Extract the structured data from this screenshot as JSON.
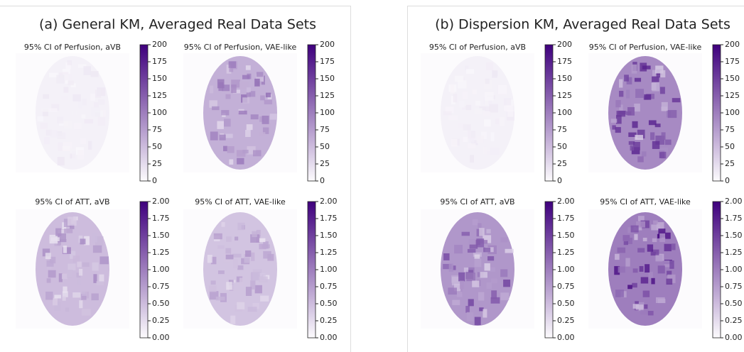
{
  "cmap": [
    "#fcfbfd",
    "#3f007d"
  ],
  "panels": [
    {
      "title": "(a) General KM, Averaged Real Data Sets",
      "plots": [
        {
          "title": "95% CI of Perfusion, aVB",
          "colorbar": {
            "lim": [
              0,
              200
            ],
            "ticks": [
              0,
              25,
              50,
              75,
              100,
              125,
              150,
              175,
              200
            ]
          }
        },
        {
          "title": "95% CI of Perfusion, VAE-like",
          "colorbar": {
            "lim": [
              0,
              200
            ],
            "ticks": [
              0,
              25,
              50,
              75,
              100,
              125,
              150,
              175,
              200
            ]
          }
        },
        {
          "title": "95% CI of ATT, aVB",
          "colorbar": {
            "lim": [
              0,
              2
            ],
            "ticks": [
              {
                "value": 0,
                "label": "0.00"
              },
              {
                "value": 0.25,
                "label": "0.25"
              },
              {
                "value": 0.5,
                "label": "0.50"
              },
              {
                "value": 0.75,
                "label": "0.75"
              },
              {
                "value": 1,
                "label": "1.00"
              },
              {
                "value": 1.25,
                "label": "1.25"
              },
              {
                "value": 1.5,
                "label": "1.50"
              },
              {
                "value": 1.75,
                "label": "1.75"
              },
              {
                "value": 2,
                "label": "2.00"
              }
            ]
          }
        },
        {
          "title": "95% CI of ATT, VAE-like",
          "colorbar": {
            "lim": [
              0,
              2
            ],
            "ticks": [
              {
                "value": 0,
                "label": "0.00"
              },
              {
                "value": 0.25,
                "label": "0.25"
              },
              {
                "value": 0.5,
                "label": "0.50"
              },
              {
                "value": 0.75,
                "label": "0.75"
              },
              {
                "value": 1,
                "label": "1.00"
              },
              {
                "value": 1.25,
                "label": "1.25"
              },
              {
                "value": 1.5,
                "label": "1.50"
              },
              {
                "value": 1.75,
                "label": "1.75"
              },
              {
                "value": 2,
                "label": "2.00"
              }
            ]
          }
        }
      ]
    },
    {
      "title": "(b) Dispersion KM, Averaged Real Data Sets",
      "plots": [
        {
          "title": "95% CI of Perfusion, aVB",
          "colorbar": {
            "lim": [
              0,
              200
            ],
            "ticks": [
              0,
              25,
              50,
              75,
              100,
              125,
              150,
              175,
              200
            ]
          }
        },
        {
          "title": "95% CI of Perfusion, VAE-like",
          "colorbar": {
            "lim": [
              0,
              200
            ],
            "ticks": [
              0,
              25,
              50,
              75,
              100,
              125,
              150,
              175,
              200
            ]
          }
        },
        {
          "title": "95% CI of ATT, aVB",
          "colorbar": {
            "lim": [
              0,
              2
            ],
            "ticks": [
              {
                "value": 0,
                "label": "0.00"
              },
              {
                "value": 0.25,
                "label": "0.25"
              },
              {
                "value": 0.5,
                "label": "0.50"
              },
              {
                "value": 0.75,
                "label": "0.75"
              },
              {
                "value": 1,
                "label": "1.00"
              },
              {
                "value": 1.25,
                "label": "1.25"
              },
              {
                "value": 1.5,
                "label": "1.50"
              },
              {
                "value": 1.75,
                "label": "1.75"
              },
              {
                "value": 2,
                "label": "2.00"
              }
            ]
          }
        },
        {
          "title": "95% CI of ATT, VAE-like",
          "colorbar": {
            "lim": [
              0,
              2
            ],
            "ticks": [
              {
                "value": 0,
                "label": "0.00"
              },
              {
                "value": 0.25,
                "label": "0.25"
              },
              {
                "value": 0.5,
                "label": "0.50"
              },
              {
                "value": 0.75,
                "label": "0.75"
              },
              {
                "value": 1,
                "label": "1.00"
              },
              {
                "value": 1.25,
                "label": "1.25"
              },
              {
                "value": 1.5,
                "label": "1.50"
              },
              {
                "value": 1.75,
                "label": "1.75"
              },
              {
                "value": 2,
                "label": "2.00"
              }
            ]
          }
        }
      ]
    }
  ]
}
